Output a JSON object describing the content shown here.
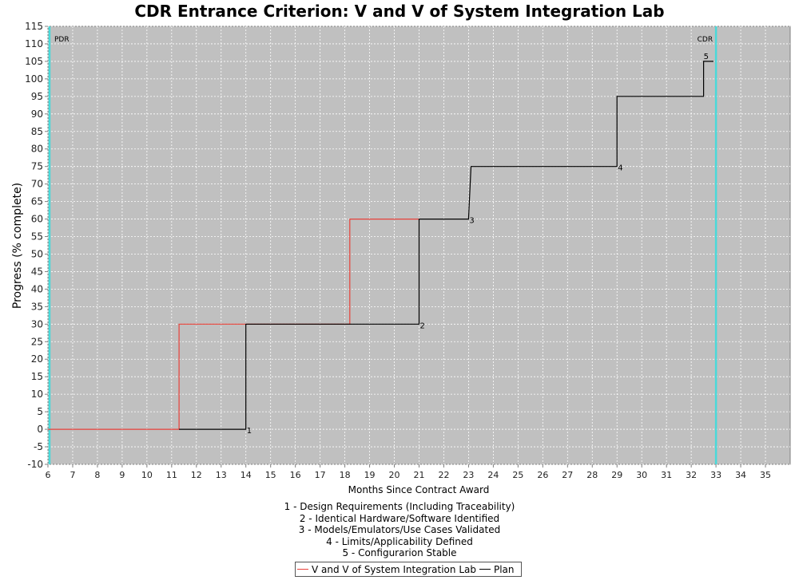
{
  "chart_data": {
    "type": "line",
    "title": "CDR Entrance Criterion: V and V of System Integration Lab",
    "xlabel": "Months Since Contract Award",
    "ylabel": "Progress (% complete)",
    "xlim": [
      6,
      36
    ],
    "ylim": [
      -10,
      115
    ],
    "x_ticks": [
      6,
      7,
      8,
      9,
      10,
      11,
      12,
      13,
      14,
      15,
      16,
      17,
      18,
      19,
      20,
      21,
      22,
      23,
      24,
      25,
      26,
      27,
      28,
      29,
      30,
      31,
      32,
      33,
      34,
      35
    ],
    "y_ticks": [
      -10,
      -5,
      0,
      5,
      10,
      15,
      20,
      25,
      30,
      35,
      40,
      45,
      50,
      55,
      60,
      65,
      70,
      75,
      80,
      85,
      90,
      95,
      100,
      105,
      110,
      115
    ],
    "grid": true,
    "legend_position": "bottom",
    "series": [
      {
        "name": "V and V of System Integration Lab",
        "color": "#e8413a",
        "points": [
          [
            6,
            0
          ],
          [
            11.3,
            0
          ],
          [
            11.3,
            30
          ],
          [
            18.2,
            30
          ],
          [
            18.2,
            60
          ],
          [
            21,
            60
          ]
        ]
      },
      {
        "name": "Plan",
        "color": "#000000",
        "points": [
          [
            11.3,
            0
          ],
          [
            14,
            0
          ],
          [
            14,
            30
          ],
          [
            18.2,
            30
          ],
          [
            21,
            30
          ],
          [
            21,
            60
          ],
          [
            23,
            60
          ],
          [
            23.1,
            75
          ],
          [
            29,
            75
          ],
          [
            29,
            95
          ],
          [
            32.5,
            95
          ],
          [
            32.5,
            105
          ],
          [
            32.9,
            105
          ]
        ]
      }
    ],
    "milestone_markers": [
      {
        "label": "1",
        "x": 14.0,
        "y": 0
      },
      {
        "label": "2",
        "x": 21.0,
        "y": 30
      },
      {
        "label": "3",
        "x": 23.0,
        "y": 60
      },
      {
        "label": "4",
        "x": 29.0,
        "y": 75
      },
      {
        "label": "5",
        "x": 32.5,
        "y": 105
      }
    ],
    "vertical_markers": [
      {
        "label": "PDR",
        "x": 6.0,
        "color": "#4ad9d9"
      },
      {
        "label": "CDR",
        "x": 33.0,
        "color": "#4ad9d9"
      }
    ],
    "notes": [
      "1 - Design Requirements (Including Traceability)",
      "2 - Identical Hardware/Software Identified",
      "3 - Models/Emulators/Use Cases Validated",
      "4 - Limits/Applicability Defined",
      "5 - Configurarion Stable"
    ]
  }
}
